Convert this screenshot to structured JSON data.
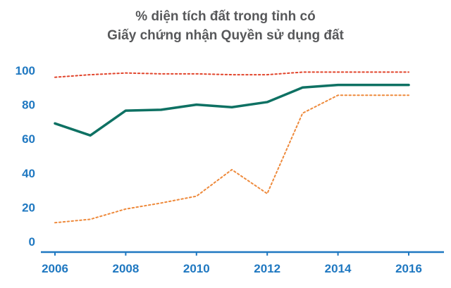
{
  "title": {
    "line1": "% diện tích đất trong tỉnh có",
    "line2": "Giấy chứng nhận Quyền sử dụng đất"
  },
  "chart_data": {
    "type": "line",
    "title": "% diện tích đất trong tỉnh có Giấy chứng nhận Quyền sử dụng đất",
    "xlabel": "",
    "ylabel": "",
    "x": [
      2006,
      2007,
      2008,
      2009,
      2010,
      2011,
      2012,
      2013,
      2014,
      2015,
      2016
    ],
    "series": [
      {
        "name": "red-dotted-upper",
        "style": "dotted",
        "color": "#e1442b",
        "values": [
          96,
          97.5,
          98.5,
          98,
          98,
          97.5,
          97.5,
          99,
          99,
          99,
          99
        ]
      },
      {
        "name": "teal-solid",
        "style": "solid",
        "color": "#0e7163",
        "values": [
          69,
          62,
          76.5,
          77,
          80,
          78.5,
          81.5,
          90,
          91.5,
          91.5,
          91.5
        ]
      },
      {
        "name": "orange-dotted-lower",
        "style": "dotted",
        "color": "#ee8a3c",
        "values": [
          11,
          13,
          19,
          22.5,
          26.5,
          42,
          28,
          75,
          85.5,
          85.5,
          85.5
        ]
      }
    ],
    "xticks": [
      2006,
      2008,
      2010,
      2012,
      2014,
      2016
    ],
    "yticks": [
      0,
      20,
      40,
      60,
      80,
      100
    ],
    "xlim": [
      2006,
      2016
    ],
    "ylim": [
      0,
      100
    ],
    "grid": false,
    "legend": "none",
    "axis_color": "#1f78c1"
  }
}
